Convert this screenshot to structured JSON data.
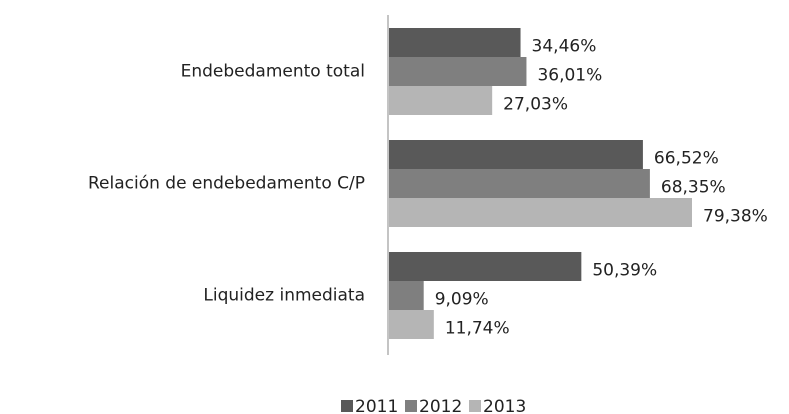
{
  "chart_data": {
    "type": "bar",
    "orientation": "horizontal",
    "categories": [
      "Endebedamento total",
      "Relación de endebedamento C/P",
      "Liquidez inmediata"
    ],
    "series": [
      {
        "name": "2011",
        "color": "#595959",
        "values": [
          34.46,
          66.52,
          50.39
        ],
        "value_labels": [
          "34,46%",
          "66,52%",
          "50,39%"
        ]
      },
      {
        "name": "2012",
        "color": "#7f7f7f",
        "values": [
          36.01,
          68.35,
          9.09
        ],
        "value_labels": [
          "36,01%",
          "68,35%",
          "9,09%"
        ]
      },
      {
        "name": "2013",
        "color": "#b5b5b5",
        "values": [
          27.03,
          79.38,
          11.74
        ],
        "value_labels": [
          "27,03%",
          "79,38%",
          "11,74%"
        ]
      }
    ],
    "legend": "bottom"
  }
}
